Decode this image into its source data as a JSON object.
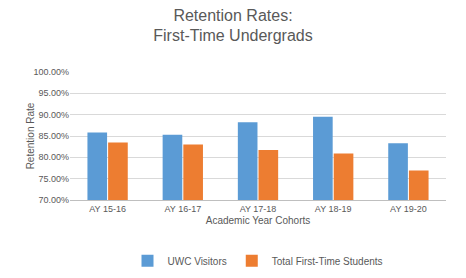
{
  "chart_data": {
    "type": "bar",
    "title": "Retention Rates:\nFirst-Time Undergrads",
    "x_label": "Academic Year Cohorts",
    "y_label": "Retention Rate",
    "categories": [
      "AY 15-16",
      "AY 16-17",
      "AY 17-18",
      "AY 18-19",
      "AY 19-20"
    ],
    "series": [
      {
        "name": "UWC Visitors",
        "color": "#5b9bd5",
        "values": [
          85.8,
          85.3,
          88.2,
          89.5,
          83.3
        ]
      },
      {
        "name": "Total First-Time Students",
        "color": "#ed7d31",
        "values": [
          83.5,
          83.0,
          81.7,
          80.9,
          76.9
        ]
      }
    ],
    "ylim": [
      70,
      100
    ],
    "yticks": [
      {
        "value": 70,
        "label": "70.00%"
      },
      {
        "value": 75,
        "label": "75.00%"
      },
      {
        "value": 80,
        "label": "80.00%"
      },
      {
        "value": 85,
        "label": "85.00%"
      },
      {
        "value": 90,
        "label": "90.00%"
      },
      {
        "value": 95,
        "label": "95.00%"
      },
      {
        "value": 100,
        "label": "100.00%"
      }
    ],
    "grid": true,
    "legend": "bottom"
  }
}
